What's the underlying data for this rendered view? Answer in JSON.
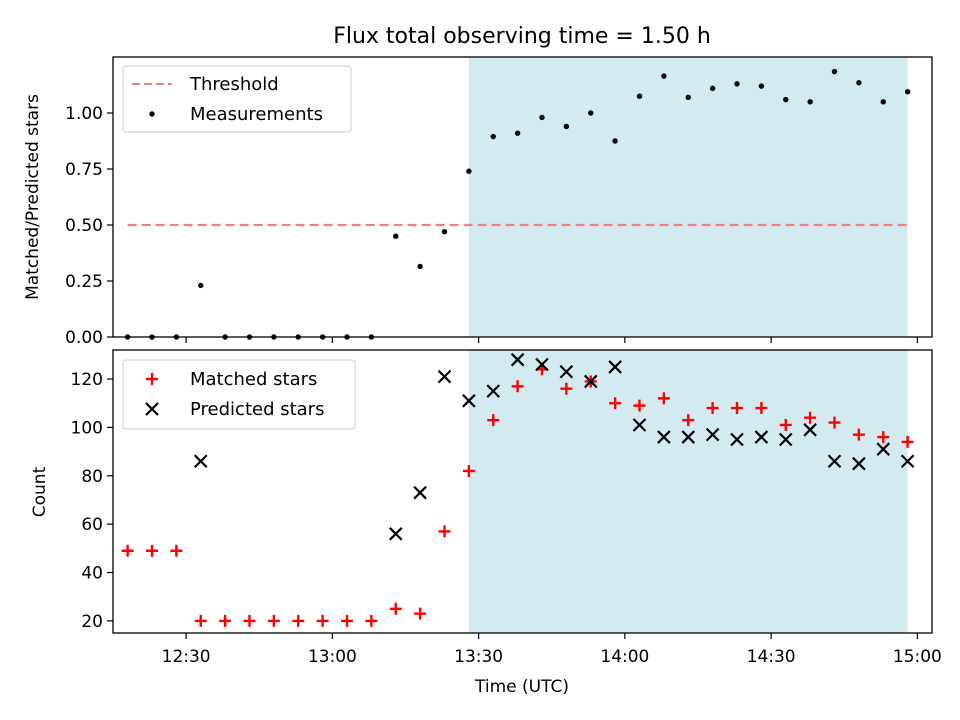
{
  "chart_data": [
    {
      "type": "scatter",
      "title": "Flux total observing time = 1.50 h",
      "xlabel": "",
      "ylabel": "Matched/Predicted stars",
      "xlim": [
        "12:15",
        "15:03"
      ],
      "ylim": [
        0,
        1.25
      ],
      "yticks": [
        "0.00",
        "0.25",
        "0.50",
        "0.75",
        "1.00"
      ],
      "shaded_region": {
        "start": "13:28",
        "end": "14:58",
        "color": "#d3eaf0"
      },
      "threshold": {
        "name": "Threshold",
        "value": 0.5,
        "start": "12:18",
        "end": "14:58",
        "color": "#f08080"
      },
      "series": [
        {
          "name": "Measurements",
          "color": "#000000",
          "x": [
            "12:18",
            "12:23",
            "12:28",
            "12:33",
            "12:38",
            "12:43",
            "12:48",
            "12:53",
            "12:58",
            "13:03",
            "13:08",
            "13:13",
            "13:18",
            "13:23",
            "13:28",
            "13:33",
            "13:38",
            "13:43",
            "13:48",
            "13:53",
            "13:58",
            "14:03",
            "14:08",
            "14:13",
            "14:18",
            "14:23",
            "14:28",
            "14:33",
            "14:38",
            "14:43",
            "14:48",
            "14:53",
            "14:58"
          ],
          "y": [
            0.0,
            0.0,
            0.0,
            0.23,
            0.0,
            0.0,
            0.0,
            0.0,
            0.0,
            0.0,
            0.0,
            0.45,
            0.315,
            0.47,
            0.74,
            0.895,
            0.91,
            0.98,
            0.94,
            1.0,
            0.875,
            1.075,
            1.165,
            1.07,
            1.11,
            1.13,
            1.12,
            1.06,
            1.05,
            1.185,
            1.135,
            1.05,
            1.095
          ]
        }
      ],
      "legend": "top-left"
    },
    {
      "type": "scatter",
      "xlabel": "Time (UTC)",
      "ylabel": "Count",
      "xlim": [
        "12:15",
        "15:03"
      ],
      "ylim": [
        15,
        132
      ],
      "xticks": [
        "12:30",
        "13:00",
        "13:30",
        "14:00",
        "14:30",
        "15:00"
      ],
      "yticks": [
        "20",
        "40",
        "60",
        "80",
        "100",
        "120"
      ],
      "shaded_region": {
        "start": "13:28",
        "end": "14:58",
        "color": "#d3eaf0"
      },
      "series": [
        {
          "name": "Matched stars",
          "marker": "+",
          "color": "#ff0000",
          "x": [
            "12:18",
            "12:23",
            "12:28",
            "12:33",
            "12:38",
            "12:43",
            "12:48",
            "12:53",
            "12:58",
            "13:03",
            "13:08",
            "13:13",
            "13:18",
            "13:23",
            "13:28",
            "13:33",
            "13:38",
            "13:43",
            "13:48",
            "13:53",
            "13:58",
            "14:03",
            "14:08",
            "14:13",
            "14:18",
            "14:23",
            "14:28",
            "14:33",
            "14:38",
            "14:43",
            "14:48",
            "14:53",
            "14:58"
          ],
          "y": [
            49,
            49,
            49,
            20,
            20,
            20,
            20,
            20,
            20,
            20,
            20,
            25,
            23,
            57,
            82,
            103,
            117,
            124,
            116,
            119,
            110,
            109,
            112,
            103,
            108,
            108,
            108,
            101,
            104,
            102,
            97,
            96,
            94
          ]
        },
        {
          "name": "Predicted stars",
          "marker": "x",
          "color": "#000000",
          "x": [
            "12:33",
            "13:13",
            "13:18",
            "13:23",
            "13:28",
            "13:33",
            "13:38",
            "13:43",
            "13:48",
            "13:53",
            "13:58",
            "14:03",
            "14:08",
            "14:13",
            "14:18",
            "14:23",
            "14:28",
            "14:33",
            "14:38",
            "14:43",
            "14:48",
            "14:53",
            "14:58"
          ],
          "y": [
            86,
            56,
            73,
            121,
            111,
            115,
            128,
            126,
            123,
            119,
            125,
            101,
            96,
            96,
            97,
            95,
            96,
            95,
            99,
            86,
            85,
            91,
            86
          ]
        }
      ],
      "legend": "top-left"
    }
  ]
}
